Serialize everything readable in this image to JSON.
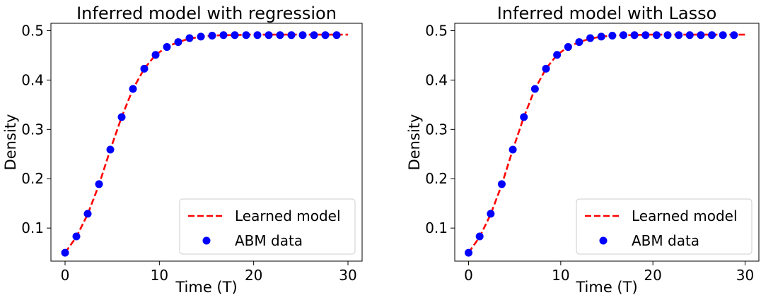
{
  "chart_data": [
    {
      "type": "line",
      "title": "Inferred model with regression",
      "xlabel": "Time (T)",
      "ylabel": "Density",
      "xlim": [
        -1.5,
        31.5
      ],
      "ylim": [
        0.033,
        0.515
      ],
      "xticks": [
        0,
        10,
        20,
        30
      ],
      "yticks": [
        0.1,
        0.2,
        0.3,
        0.4,
        0.5
      ],
      "legend_position": "lower-right",
      "series": [
        {
          "name": "Learned model",
          "style": "dashed-line",
          "color": "#ff0000",
          "x": [
            0,
            1.2,
            2.4,
            3.6,
            4.8,
            6.0,
            7.2,
            8.4,
            9.6,
            10.8,
            12.0,
            13.2,
            14.4,
            15.6,
            16.8,
            18.0,
            19.2,
            20.4,
            21.6,
            22.8,
            24.0,
            25.2,
            26.4,
            27.6,
            28.8,
            30.0
          ],
          "values": [
            0.05,
            0.082,
            0.128,
            0.188,
            0.259,
            0.325,
            0.382,
            0.423,
            0.451,
            0.467,
            0.477,
            0.484,
            0.488,
            0.49,
            0.491,
            0.491,
            0.492,
            0.492,
            0.492,
            0.492,
            0.492,
            0.492,
            0.492,
            0.492,
            0.492,
            0.492
          ]
        },
        {
          "name": "ABM data",
          "style": "markers",
          "color": "#0000ff",
          "x": [
            0,
            1.2,
            2.4,
            3.6,
            4.8,
            6.0,
            7.2,
            8.4,
            9.6,
            10.8,
            12.0,
            13.2,
            14.4,
            15.6,
            16.8,
            18.0,
            19.2,
            20.4,
            21.6,
            22.8,
            24.0,
            25.2,
            26.4,
            27.6,
            28.8
          ],
          "values": [
            0.05,
            0.083,
            0.129,
            0.189,
            0.259,
            0.325,
            0.382,
            0.423,
            0.451,
            0.467,
            0.477,
            0.485,
            0.488,
            0.49,
            0.491,
            0.491,
            0.491,
            0.491,
            0.491,
            0.491,
            0.491,
            0.491,
            0.491,
            0.491,
            0.491
          ]
        }
      ]
    },
    {
      "type": "line",
      "title": "Inferred model with Lasso",
      "xlabel": "Time (T)",
      "ylabel": "Density",
      "xlim": [
        -1.5,
        31.5
      ],
      "ylim": [
        0.033,
        0.515
      ],
      "xticks": [
        0,
        10,
        20,
        30
      ],
      "yticks": [
        0.1,
        0.2,
        0.3,
        0.4,
        0.5
      ],
      "legend_position": "lower-right",
      "series": [
        {
          "name": "Learned model",
          "style": "dashed-line",
          "color": "#ff0000",
          "x": [
            0,
            1.2,
            2.4,
            3.6,
            4.8,
            6.0,
            7.2,
            8.4,
            9.6,
            10.8,
            12.0,
            13.2,
            14.4,
            15.6,
            16.8,
            18.0,
            19.2,
            20.4,
            21.6,
            22.8,
            24.0,
            25.2,
            26.4,
            27.6,
            28.8,
            30.0
          ],
          "values": [
            0.05,
            0.082,
            0.128,
            0.188,
            0.259,
            0.325,
            0.382,
            0.423,
            0.451,
            0.467,
            0.477,
            0.484,
            0.488,
            0.49,
            0.491,
            0.491,
            0.492,
            0.492,
            0.492,
            0.492,
            0.492,
            0.492,
            0.492,
            0.492,
            0.492,
            0.492
          ]
        },
        {
          "name": "ABM data",
          "style": "markers",
          "color": "#0000ff",
          "x": [
            0,
            1.2,
            2.4,
            3.6,
            4.8,
            6.0,
            7.2,
            8.4,
            9.6,
            10.8,
            12.0,
            13.2,
            14.4,
            15.6,
            16.8,
            18.0,
            19.2,
            20.4,
            21.6,
            22.8,
            24.0,
            25.2,
            26.4,
            27.6,
            28.8
          ],
          "values": [
            0.05,
            0.083,
            0.129,
            0.189,
            0.259,
            0.325,
            0.382,
            0.423,
            0.451,
            0.467,
            0.477,
            0.485,
            0.488,
            0.49,
            0.491,
            0.491,
            0.491,
            0.491,
            0.491,
            0.491,
            0.491,
            0.491,
            0.491,
            0.491,
            0.491
          ]
        }
      ]
    }
  ]
}
